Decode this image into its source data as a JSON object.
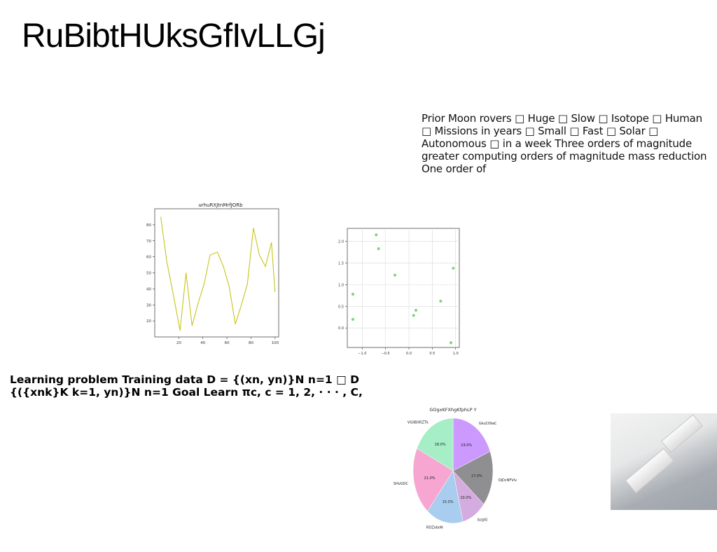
{
  "title": "RuBibtHUksGfIvLLGj",
  "paragraph_right": "Prior Moon rovers □ Huge □ Slow □ Isotope □ Human □ Missions in years □ Small □ Fast □ Solar □ Autonomous □ in a week Three orders of magnitude greater computing orders of magnitude mass reduction One order of",
  "paragraph_left": "Learning problem Training data D = {(xn, yn)}N n=1 □ D {({xnk}K k=1, yn)}N n=1 Goal Learn πc, c = 1, 2, · · · , C,",
  "colors": {
    "line": "#c8c41a",
    "scatter": "#7fd37f"
  },
  "chart_data": [
    {
      "type": "line",
      "title": "urhuRXJtnMrfJORb",
      "x": [
        5,
        10,
        15,
        21,
        26,
        31,
        36,
        41,
        46,
        52,
        57,
        62,
        67,
        72,
        77,
        82,
        87,
        92,
        97,
        100
      ],
      "y": [
        85,
        57,
        38,
        14,
        50,
        17,
        31,
        43,
        61,
        63,
        54,
        41,
        18,
        30,
        43,
        78,
        61,
        54,
        69,
        38
      ],
      "xlim": [
        0,
        103
      ],
      "ylim": [
        10,
        90
      ],
      "xticks": [
        20,
        40,
        60,
        80,
        100
      ],
      "yticks": [
        20,
        30,
        40,
        50,
        60,
        70,
        80
      ],
      "grid": false
    },
    {
      "type": "scatter",
      "title": "",
      "points": [
        {
          "x": -1.2,
          "y": 0.78
        },
        {
          "x": -1.2,
          "y": 0.2
        },
        {
          "x": -0.7,
          "y": 2.15
        },
        {
          "x": -0.65,
          "y": 1.83
        },
        {
          "x": -0.3,
          "y": 1.22
        },
        {
          "x": 0.1,
          "y": 0.29
        },
        {
          "x": 0.15,
          "y": 0.41
        },
        {
          "x": 0.68,
          "y": 0.62
        },
        {
          "x": 0.9,
          "y": -0.34
        },
        {
          "x": 0.95,
          "y": 1.38
        }
      ],
      "xlim": [
        -1.32,
        1.08
      ],
      "ylim": [
        -0.45,
        2.3
      ],
      "xticks": [
        -1.0,
        -0.5,
        0.0,
        0.5,
        1.0
      ],
      "yticks": [
        0.0,
        0.5,
        1.0,
        1.5,
        2.0
      ],
      "grid": true
    },
    {
      "type": "pie",
      "title": "GOgxKFXhgKfphLP Y",
      "slices": [
        {
          "label": "GkuCtNaC",
          "value": 19.0,
          "pct": "19.0%",
          "color": "#cc99ff"
        },
        {
          "label": "OjDcNFVlv",
          "value": 17.0,
          "pct": "17.0%",
          "color": "#8f8f91"
        },
        {
          "label": "bzglG",
          "value": 10.0,
          "pct": "10.0%",
          "color": "#d4acdf"
        },
        {
          "label": "RDZoboN",
          "value": 15.0,
          "pct": "15.0%",
          "color": "#a9cdee"
        },
        {
          "label": "SHvGDC",
          "value": 21.0,
          "pct": "21.0%",
          "color": "#f6a6d1"
        },
        {
          "label": "VGIIBXRZTk",
          "value": 18.0,
          "pct": "18.0%",
          "color": "#a5eec6"
        }
      ]
    }
  ]
}
